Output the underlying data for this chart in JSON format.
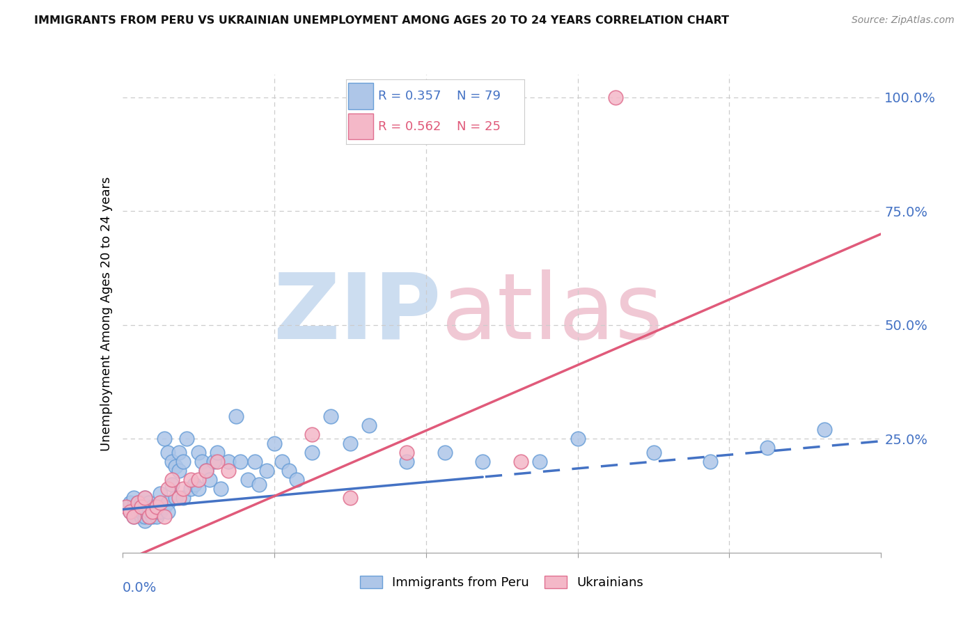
{
  "title": "IMMIGRANTS FROM PERU VS UKRAINIAN UNEMPLOYMENT AMONG AGES 20 TO 24 YEARS CORRELATION CHART",
  "source": "Source: ZipAtlas.com",
  "ylabel": "Unemployment Among Ages 20 to 24 years",
  "legend_label1": "Immigrants from Peru",
  "legend_label2": "Ukrainians",
  "legend_R1": "R = 0.357",
  "legend_N1": "N = 79",
  "legend_R2": "R = 0.562",
  "legend_N2": "N = 25",
  "color_peru_fill": "#aec6e8",
  "color_peru_edge": "#6a9fd8",
  "color_ukraine_fill": "#f4b8c8",
  "color_ukraine_edge": "#e07090",
  "color_peru_line": "#4472c4",
  "color_ukraine_line": "#e05a7a",
  "color_right_axis": "#4472c4",
  "color_grid": "#cccccc",
  "xlim": [
    0.0,
    0.2
  ],
  "ylim": [
    0.0,
    1.05
  ],
  "xticks": [
    0.0,
    0.04,
    0.08,
    0.12,
    0.16,
    0.2
  ],
  "ytick_vals": [
    0.25,
    0.5,
    0.75,
    1.0
  ],
  "ytick_labels": [
    "25.0%",
    "50.0%",
    "75.0%",
    "100.0%"
  ],
  "peru_solid_cutoff": 0.095,
  "peru_line_start": 0.0,
  "peru_line_end": 0.2,
  "ukraine_line_start": 0.0,
  "ukraine_line_end": 0.2,
  "peru_intercept": 0.095,
  "peru_slope": 0.75,
  "ukraine_intercept": -0.02,
  "ukraine_slope": 3.6,
  "peru_x": [
    0.001,
    0.002,
    0.002,
    0.003,
    0.003,
    0.003,
    0.004,
    0.004,
    0.004,
    0.005,
    0.005,
    0.005,
    0.005,
    0.006,
    0.006,
    0.006,
    0.006,
    0.006,
    0.007,
    0.007,
    0.007,
    0.007,
    0.008,
    0.008,
    0.008,
    0.009,
    0.009,
    0.009,
    0.01,
    0.01,
    0.01,
    0.011,
    0.011,
    0.012,
    0.012,
    0.012,
    0.013,
    0.013,
    0.014,
    0.014,
    0.015,
    0.015,
    0.016,
    0.016,
    0.017,
    0.018,
    0.019,
    0.02,
    0.02,
    0.021,
    0.022,
    0.023,
    0.024,
    0.025,
    0.026,
    0.028,
    0.03,
    0.031,
    0.033,
    0.035,
    0.036,
    0.038,
    0.04,
    0.042,
    0.044,
    0.046,
    0.05,
    0.055,
    0.06,
    0.065,
    0.075,
    0.085,
    0.095,
    0.11,
    0.12,
    0.14,
    0.155,
    0.17,
    0.185
  ],
  "peru_y": [
    0.1,
    0.09,
    0.11,
    0.08,
    0.1,
    0.12,
    0.09,
    0.1,
    0.11,
    0.08,
    0.09,
    0.1,
    0.11,
    0.07,
    0.08,
    0.09,
    0.1,
    0.12,
    0.08,
    0.09,
    0.1,
    0.11,
    0.08,
    0.09,
    0.1,
    0.08,
    0.09,
    0.1,
    0.09,
    0.1,
    0.13,
    0.1,
    0.25,
    0.11,
    0.22,
    0.09,
    0.2,
    0.15,
    0.19,
    0.12,
    0.18,
    0.22,
    0.12,
    0.2,
    0.25,
    0.14,
    0.15,
    0.22,
    0.14,
    0.2,
    0.18,
    0.16,
    0.2,
    0.22,
    0.14,
    0.2,
    0.3,
    0.2,
    0.16,
    0.2,
    0.15,
    0.18,
    0.24,
    0.2,
    0.18,
    0.16,
    0.22,
    0.3,
    0.24,
    0.28,
    0.2,
    0.22,
    0.2,
    0.2,
    0.25,
    0.22,
    0.2,
    0.23,
    0.27
  ],
  "ukraine_x": [
    0.001,
    0.002,
    0.003,
    0.004,
    0.005,
    0.006,
    0.007,
    0.008,
    0.009,
    0.01,
    0.011,
    0.012,
    0.013,
    0.015,
    0.016,
    0.018,
    0.02,
    0.022,
    0.025,
    0.028,
    0.05,
    0.06,
    0.075,
    0.105,
    0.13
  ],
  "ukraine_y": [
    0.1,
    0.09,
    0.08,
    0.11,
    0.1,
    0.12,
    0.08,
    0.09,
    0.1,
    0.11,
    0.08,
    0.14,
    0.16,
    0.12,
    0.14,
    0.16,
    0.16,
    0.18,
    0.2,
    0.18,
    0.26,
    0.12,
    0.22,
    0.2,
    1.0
  ]
}
